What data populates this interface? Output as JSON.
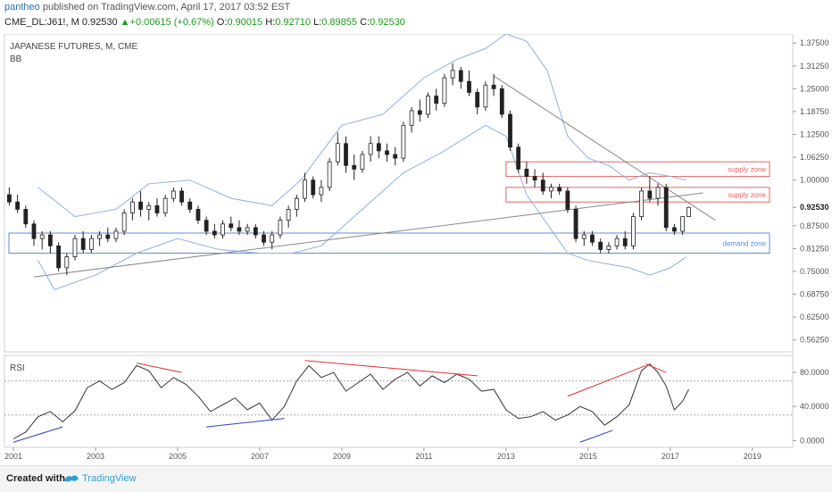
{
  "header": {
    "author": "pantheo",
    "published": "published on TradingView.com, April 17, 2017 03:52 EST",
    "symbol": "CME_DL:J61!, M",
    "price": "0.92530",
    "change": "+0.00615 (+0.67%)",
    "o_label": "O:",
    "o": "0.90015",
    "h_label": "H:",
    "h": "0.92710",
    "l_label": "L:",
    "l": "0.89855",
    "c_label": "C:",
    "c": "0.92530"
  },
  "footer": {
    "created_with": "Created with",
    "brand": "TradingView"
  },
  "colors": {
    "up": "#ffffff",
    "down": "#222222",
    "bb": "#8fb0e0",
    "trend": "#888888",
    "supply": "#e06666",
    "demand": "#5b8fd8",
    "rsi": "#333333",
    "div_red": "#e03030",
    "div_blue": "#3040c0"
  },
  "chart_data": [
    {
      "type": "candlestick",
      "title": "JAPANESE FUTURES, M, CME",
      "indicator": "BB",
      "y_ticks": [
        "1.37500",
        "1.31250",
        "1.25000",
        "1.18750",
        "1.12500",
        "1.06250",
        "1.00000",
        "0.92530",
        "0.87500",
        "0.81250",
        "0.75000",
        "0.68750",
        "0.62500",
        "0.56250"
      ],
      "ylim": [
        0.53,
        1.4
      ],
      "x_ticks": [
        "2001",
        "2003",
        "2005",
        "2007",
        "2009",
        "2011",
        "2013",
        "2015",
        "2017",
        "2019"
      ],
      "xlim": [
        2001.0,
        2020.2
      ],
      "last_price": 0.9253,
      "zones": [
        {
          "label": "supply zone",
          "y_low": 1.01,
          "y_high": 1.05,
          "x_start": 2013.0,
          "x_end": 2019.7
        },
        {
          "label": "supply zone",
          "y_low": 0.94,
          "y_high": 0.98,
          "x_start": 2013.0,
          "x_end": 2019.7
        },
        {
          "label": "demand zone",
          "y_low": 0.8,
          "y_high": 0.855,
          "x_start": 2001.0,
          "x_end": 2019.7
        }
      ],
      "trendlines": [
        {
          "x1": 2001.5,
          "y1": 0.735,
          "x2": 2017.8,
          "y2": 0.965
        },
        {
          "x1": 2012.7,
          "y1": 1.285,
          "x2": 2018.1,
          "y2": 0.89
        }
      ],
      "candles": [
        {
          "x": 2000.9,
          "o": 0.96,
          "h": 0.98,
          "l": 0.93,
          "c": 0.94
        },
        {
          "x": 2001.1,
          "o": 0.94,
          "h": 0.96,
          "l": 0.91,
          "c": 0.92
        },
        {
          "x": 2001.3,
          "o": 0.92,
          "h": 0.93,
          "l": 0.87,
          "c": 0.88
        },
        {
          "x": 2001.5,
          "o": 0.88,
          "h": 0.89,
          "l": 0.82,
          "c": 0.84
        },
        {
          "x": 2001.7,
          "o": 0.84,
          "h": 0.86,
          "l": 0.81,
          "c": 0.85
        },
        {
          "x": 2001.9,
          "o": 0.85,
          "h": 0.86,
          "l": 0.8,
          "c": 0.82
        },
        {
          "x": 2002.1,
          "o": 0.82,
          "h": 0.83,
          "l": 0.75,
          "c": 0.76
        },
        {
          "x": 2002.3,
          "o": 0.76,
          "h": 0.8,
          "l": 0.74,
          "c": 0.79
        },
        {
          "x": 2002.5,
          "o": 0.79,
          "h": 0.85,
          "l": 0.78,
          "c": 0.84
        },
        {
          "x": 2002.7,
          "o": 0.84,
          "h": 0.86,
          "l": 0.8,
          "c": 0.81
        },
        {
          "x": 2002.9,
          "o": 0.81,
          "h": 0.85,
          "l": 0.8,
          "c": 0.84
        },
        {
          "x": 2003.1,
          "o": 0.84,
          "h": 0.86,
          "l": 0.82,
          "c": 0.85
        },
        {
          "x": 2003.3,
          "o": 0.85,
          "h": 0.87,
          "l": 0.83,
          "c": 0.84
        },
        {
          "x": 2003.5,
          "o": 0.84,
          "h": 0.87,
          "l": 0.83,
          "c": 0.86
        },
        {
          "x": 2003.7,
          "o": 0.86,
          "h": 0.92,
          "l": 0.85,
          "c": 0.91
        },
        {
          "x": 2003.9,
          "o": 0.91,
          "h": 0.95,
          "l": 0.89,
          "c": 0.94
        },
        {
          "x": 2004.1,
          "o": 0.94,
          "h": 0.97,
          "l": 0.9,
          "c": 0.92
        },
        {
          "x": 2004.3,
          "o": 0.92,
          "h": 0.94,
          "l": 0.89,
          "c": 0.93
        },
        {
          "x": 2004.5,
          "o": 0.93,
          "h": 0.95,
          "l": 0.9,
          "c": 0.91
        },
        {
          "x": 2004.7,
          "o": 0.91,
          "h": 0.96,
          "l": 0.9,
          "c": 0.95
        },
        {
          "x": 2004.9,
          "o": 0.95,
          "h": 0.98,
          "l": 0.94,
          "c": 0.97
        },
        {
          "x": 2005.1,
          "o": 0.97,
          "h": 0.98,
          "l": 0.93,
          "c": 0.94
        },
        {
          "x": 2005.3,
          "o": 0.94,
          "h": 0.95,
          "l": 0.91,
          "c": 0.92
        },
        {
          "x": 2005.5,
          "o": 0.92,
          "h": 0.93,
          "l": 0.88,
          "c": 0.89
        },
        {
          "x": 2005.7,
          "o": 0.89,
          "h": 0.9,
          "l": 0.85,
          "c": 0.86
        },
        {
          "x": 2005.9,
          "o": 0.86,
          "h": 0.88,
          "l": 0.84,
          "c": 0.85
        },
        {
          "x": 2006.1,
          "o": 0.85,
          "h": 0.89,
          "l": 0.84,
          "c": 0.88
        },
        {
          "x": 2006.3,
          "o": 0.88,
          "h": 0.9,
          "l": 0.86,
          "c": 0.87
        },
        {
          "x": 2006.5,
          "o": 0.87,
          "h": 0.89,
          "l": 0.85,
          "c": 0.86
        },
        {
          "x": 2006.7,
          "o": 0.86,
          "h": 0.88,
          "l": 0.85,
          "c": 0.87
        },
        {
          "x": 2006.9,
          "o": 0.87,
          "h": 0.88,
          "l": 0.84,
          "c": 0.85
        },
        {
          "x": 2007.1,
          "o": 0.85,
          "h": 0.86,
          "l": 0.82,
          "c": 0.83
        },
        {
          "x": 2007.3,
          "o": 0.83,
          "h": 0.86,
          "l": 0.81,
          "c": 0.85
        },
        {
          "x": 2007.5,
          "o": 0.85,
          "h": 0.9,
          "l": 0.84,
          "c": 0.89
        },
        {
          "x": 2007.7,
          "o": 0.89,
          "h": 0.93,
          "l": 0.87,
          "c": 0.92
        },
        {
          "x": 2007.9,
          "o": 0.92,
          "h": 0.96,
          "l": 0.9,
          "c": 0.95
        },
        {
          "x": 2008.1,
          "o": 0.95,
          "h": 1.02,
          "l": 0.94,
          "c": 1.0
        },
        {
          "x": 2008.3,
          "o": 1.0,
          "h": 1.01,
          "l": 0.95,
          "c": 0.96
        },
        {
          "x": 2008.5,
          "o": 0.96,
          "h": 1.0,
          "l": 0.94,
          "c": 0.98
        },
        {
          "x": 2008.7,
          "o": 0.98,
          "h": 1.06,
          "l": 0.97,
          "c": 1.05
        },
        {
          "x": 2008.9,
          "o": 1.05,
          "h": 1.13,
          "l": 1.04,
          "c": 1.1
        },
        {
          "x": 2009.1,
          "o": 1.1,
          "h": 1.12,
          "l": 1.02,
          "c": 1.04
        },
        {
          "x": 2009.3,
          "o": 1.04,
          "h": 1.07,
          "l": 1.0,
          "c": 1.03
        },
        {
          "x": 2009.5,
          "o": 1.03,
          "h": 1.08,
          "l": 1.02,
          "c": 1.07
        },
        {
          "x": 2009.7,
          "o": 1.07,
          "h": 1.12,
          "l": 1.05,
          "c": 1.1
        },
        {
          "x": 2009.9,
          "o": 1.1,
          "h": 1.12,
          "l": 1.06,
          "c": 1.08
        },
        {
          "x": 2010.1,
          "o": 1.08,
          "h": 1.1,
          "l": 1.05,
          "c": 1.07
        },
        {
          "x": 2010.3,
          "o": 1.07,
          "h": 1.09,
          "l": 1.04,
          "c": 1.06
        },
        {
          "x": 2010.5,
          "o": 1.06,
          "h": 1.16,
          "l": 1.05,
          "c": 1.15
        },
        {
          "x": 2010.7,
          "o": 1.15,
          "h": 1.2,
          "l": 1.13,
          "c": 1.19
        },
        {
          "x": 2010.9,
          "o": 1.19,
          "h": 1.22,
          "l": 1.16,
          "c": 1.18
        },
        {
          "x": 2011.1,
          "o": 1.18,
          "h": 1.24,
          "l": 1.17,
          "c": 1.23
        },
        {
          "x": 2011.3,
          "o": 1.23,
          "h": 1.25,
          "l": 1.19,
          "c": 1.21
        },
        {
          "x": 2011.5,
          "o": 1.21,
          "h": 1.29,
          "l": 1.2,
          "c": 1.28
        },
        {
          "x": 2011.7,
          "o": 1.28,
          "h": 1.32,
          "l": 1.26,
          "c": 1.3
        },
        {
          "x": 2011.9,
          "o": 1.3,
          "h": 1.31,
          "l": 1.25,
          "c": 1.27
        },
        {
          "x": 2012.1,
          "o": 1.27,
          "h": 1.3,
          "l": 1.23,
          "c": 1.24
        },
        {
          "x": 2012.3,
          "o": 1.24,
          "h": 1.25,
          "l": 1.18,
          "c": 1.2
        },
        {
          "x": 2012.5,
          "o": 1.2,
          "h": 1.27,
          "l": 1.19,
          "c": 1.26
        },
        {
          "x": 2012.7,
          "o": 1.26,
          "h": 1.29,
          "l": 1.23,
          "c": 1.25
        },
        {
          "x": 2012.9,
          "o": 1.25,
          "h": 1.26,
          "l": 1.17,
          "c": 1.18
        },
        {
          "x": 2013.1,
          "o": 1.18,
          "h": 1.19,
          "l": 1.08,
          "c": 1.09
        },
        {
          "x": 2013.3,
          "o": 1.09,
          "h": 1.1,
          "l": 1.02,
          "c": 1.03
        },
        {
          "x": 2013.5,
          "o": 1.03,
          "h": 1.05,
          "l": 0.99,
          "c": 1.01
        },
        {
          "x": 2013.7,
          "o": 1.01,
          "h": 1.03,
          "l": 0.98,
          "c": 1.0
        },
        {
          "x": 2013.9,
          "o": 1.0,
          "h": 1.02,
          "l": 0.96,
          "c": 0.97
        },
        {
          "x": 2014.1,
          "o": 0.97,
          "h": 0.99,
          "l": 0.95,
          "c": 0.98
        },
        {
          "x": 2014.3,
          "o": 0.98,
          "h": 0.99,
          "l": 0.96,
          "c": 0.97
        },
        {
          "x": 2014.5,
          "o": 0.97,
          "h": 0.98,
          "l": 0.91,
          "c": 0.92
        },
        {
          "x": 2014.7,
          "o": 0.92,
          "h": 0.93,
          "l": 0.83,
          "c": 0.84
        },
        {
          "x": 2014.9,
          "o": 0.84,
          "h": 0.86,
          "l": 0.82,
          "c": 0.85
        },
        {
          "x": 2015.1,
          "o": 0.85,
          "h": 0.86,
          "l": 0.82,
          "c": 0.83
        },
        {
          "x": 2015.3,
          "o": 0.83,
          "h": 0.84,
          "l": 0.8,
          "c": 0.81
        },
        {
          "x": 2015.5,
          "o": 0.81,
          "h": 0.83,
          "l": 0.8,
          "c": 0.82
        },
        {
          "x": 2015.7,
          "o": 0.82,
          "h": 0.85,
          "l": 0.81,
          "c": 0.84
        },
        {
          "x": 2015.9,
          "o": 0.84,
          "h": 0.86,
          "l": 0.81,
          "c": 0.82
        },
        {
          "x": 2016.1,
          "o": 0.82,
          "h": 0.91,
          "l": 0.81,
          "c": 0.9
        },
        {
          "x": 2016.3,
          "o": 0.9,
          "h": 0.98,
          "l": 0.89,
          "c": 0.97
        },
        {
          "x": 2016.5,
          "o": 0.97,
          "h": 1.01,
          "l": 0.94,
          "c": 0.95
        },
        {
          "x": 2016.7,
          "o": 0.95,
          "h": 0.99,
          "l": 0.93,
          "c": 0.98
        },
        {
          "x": 2016.9,
          "o": 0.98,
          "h": 0.99,
          "l": 0.86,
          "c": 0.87
        },
        {
          "x": 2017.1,
          "o": 0.87,
          "h": 0.88,
          "l": 0.85,
          "c": 0.86
        },
        {
          "x": 2017.3,
          "o": 0.86,
          "h": 0.9,
          "l": 0.85,
          "c": 0.9
        },
        {
          "x": 2017.45,
          "o": 0.9,
          "h": 0.927,
          "l": 0.899,
          "c": 0.9253
        }
      ],
      "bb_upper": [
        [
          2001.6,
          0.98
        ],
        [
          2002.5,
          0.9
        ],
        [
          2003.5,
          0.92
        ],
        [
          2004.3,
          0.99
        ],
        [
          2005.3,
          1.0
        ],
        [
          2006.3,
          0.95
        ],
        [
          2007.3,
          0.93
        ],
        [
          2008.0,
          1.0
        ],
        [
          2009.0,
          1.15
        ],
        [
          2010.0,
          1.18
        ],
        [
          2011.0,
          1.28
        ],
        [
          2011.8,
          1.33
        ],
        [
          2012.5,
          1.36
        ],
        [
          2013.0,
          1.4
        ],
        [
          2013.5,
          1.38
        ],
        [
          2014.0,
          1.3
        ],
        [
          2014.5,
          1.12
        ],
        [
          2015.0,
          1.06
        ],
        [
          2015.5,
          1.04
        ],
        [
          2016.0,
          1.0
        ],
        [
          2016.5,
          1.02
        ],
        [
          2017.0,
          1.01
        ],
        [
          2017.4,
          1.0
        ]
      ],
      "bb_lower": [
        [
          2001.6,
          0.78
        ],
        [
          2002.0,
          0.7
        ],
        [
          2003.0,
          0.74
        ],
        [
          2004.0,
          0.8
        ],
        [
          2005.0,
          0.84
        ],
        [
          2006.0,
          0.81
        ],
        [
          2007.0,
          0.8
        ],
        [
          2007.8,
          0.8
        ],
        [
          2008.5,
          0.82
        ],
        [
          2009.5,
          0.92
        ],
        [
          2010.5,
          1.02
        ],
        [
          2011.5,
          1.08
        ],
        [
          2012.5,
          1.15
        ],
        [
          2013.0,
          1.12
        ],
        [
          2013.5,
          0.96
        ],
        [
          2014.0,
          0.88
        ],
        [
          2014.5,
          0.8
        ],
        [
          2015.0,
          0.78
        ],
        [
          2015.5,
          0.77
        ],
        [
          2016.0,
          0.76
        ],
        [
          2016.5,
          0.74
        ],
        [
          2017.0,
          0.76
        ],
        [
          2017.4,
          0.79
        ]
      ]
    },
    {
      "type": "line",
      "title": "RSI",
      "y_ticks": [
        "80.0000",
        "40.0000",
        "0.0000"
      ],
      "ylim": [
        -8,
        100
      ],
      "levels": [
        70,
        30
      ],
      "rsi": [
        [
          2001.0,
          2
        ],
        [
          2001.3,
          10
        ],
        [
          2001.6,
          28
        ],
        [
          2001.9,
          34
        ],
        [
          2002.2,
          22
        ],
        [
          2002.5,
          35
        ],
        [
          2002.8,
          62
        ],
        [
          2003.1,
          70
        ],
        [
          2003.4,
          60
        ],
        [
          2003.7,
          68
        ],
        [
          2004.0,
          88
        ],
        [
          2004.3,
          82
        ],
        [
          2004.6,
          62
        ],
        [
          2004.9,
          74
        ],
        [
          2005.2,
          66
        ],
        [
          2005.5,
          52
        ],
        [
          2005.8,
          34
        ],
        [
          2006.1,
          42
        ],
        [
          2006.4,
          50
        ],
        [
          2006.7,
          36
        ],
        [
          2007.0,
          44
        ],
        [
          2007.3,
          24
        ],
        [
          2007.6,
          40
        ],
        [
          2007.9,
          70
        ],
        [
          2008.2,
          88
        ],
        [
          2008.5,
          74
        ],
        [
          2008.8,
          80
        ],
        [
          2009.1,
          58
        ],
        [
          2009.4,
          68
        ],
        [
          2009.7,
          78
        ],
        [
          2010.0,
          60
        ],
        [
          2010.3,
          72
        ],
        [
          2010.6,
          80
        ],
        [
          2010.9,
          64
        ],
        [
          2011.2,
          76
        ],
        [
          2011.5,
          68
        ],
        [
          2011.8,
          78
        ],
        [
          2012.1,
          72
        ],
        [
          2012.4,
          58
        ],
        [
          2012.7,
          60
        ],
        [
          2013.0,
          36
        ],
        [
          2013.3,
          26
        ],
        [
          2013.6,
          28
        ],
        [
          2013.9,
          34
        ],
        [
          2014.2,
          24
        ],
        [
          2014.5,
          30
        ],
        [
          2014.8,
          40
        ],
        [
          2015.1,
          34
        ],
        [
          2015.4,
          18
        ],
        [
          2015.7,
          28
        ],
        [
          2016.0,
          42
        ],
        [
          2016.3,
          82
        ],
        [
          2016.5,
          90
        ],
        [
          2016.7,
          80
        ],
        [
          2016.9,
          64
        ],
        [
          2017.1,
          36
        ],
        [
          2017.3,
          46
        ],
        [
          2017.45,
          60
        ]
      ],
      "divergences": [
        {
          "color": "red",
          "x1": 2004.0,
          "y1": 91,
          "x2": 2005.1,
          "y2": 80
        },
        {
          "color": "blue",
          "x1": 2005.7,
          "y1": 16,
          "x2": 2007.6,
          "y2": 26
        },
        {
          "color": "red",
          "x1": 2008.1,
          "y1": 94,
          "x2": 2012.3,
          "y2": 76
        },
        {
          "color": "blue",
          "x1": 2001.0,
          "y1": -2,
          "x2": 2002.2,
          "y2": 16
        },
        {
          "color": "red",
          "x1": 2014.5,
          "y1": 52,
          "x2": 2016.4,
          "y2": 88
        },
        {
          "color": "red",
          "x1": 2016.4,
          "y1": 90,
          "x2": 2016.9,
          "y2": 80
        },
        {
          "color": "blue",
          "x1": 2014.8,
          "y1": -2,
          "x2": 2015.6,
          "y2": 12
        }
      ]
    }
  ]
}
